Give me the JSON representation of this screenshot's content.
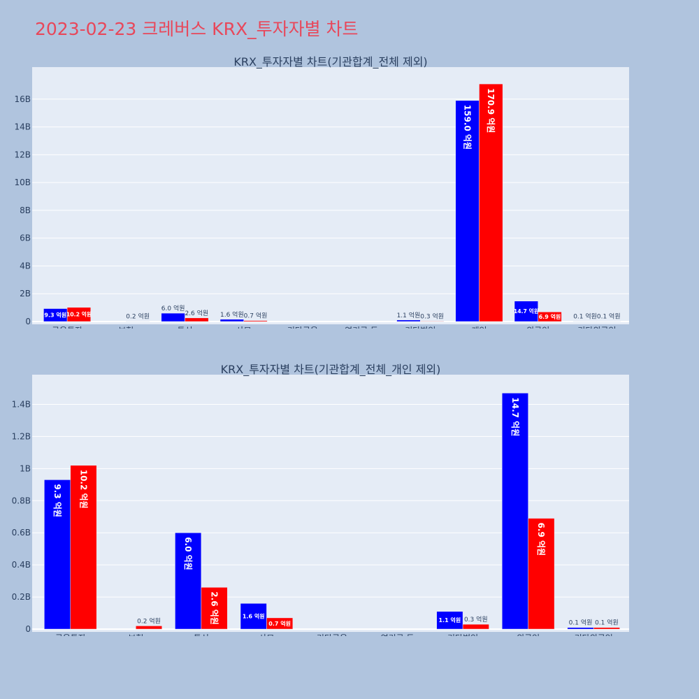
{
  "page": {
    "title": "2023-02-23 크레버스 KRX_투자자별 차트"
  },
  "colors": {
    "background": "#b0c4de",
    "plot_bg": "#e5ecf6",
    "grid": "#ffffff",
    "title": "#e8475a",
    "text": "#2a3f5f",
    "series_1": "#0000ff",
    "series_2": "#ff0000"
  },
  "chart_data": [
    {
      "type": "bar",
      "title": "KRX_투자자별 차트(기관합계_전체 제외)",
      "categories": [
        "금융투자",
        "보험",
        "투신",
        "사모",
        "기타금융",
        "연기금 등",
        "기타법인",
        "개인",
        "외국인",
        "기타외국인"
      ],
      "series": [
        {
          "color": "#0000ff",
          "values": [
            930000000,
            null,
            600000000,
            160000000,
            null,
            null,
            110000000,
            15900000000,
            1470000000,
            10000000
          ],
          "labels": [
            "9.3 억원",
            "",
            "6.0 억원",
            "1.6 억원",
            "",
            "",
            "1.1 억원",
            "159.0 억원",
            "14.7 억원",
            "0.1 억원"
          ]
        },
        {
          "color": "#ff0000",
          "values": [
            1020000000,
            20000000,
            260000000,
            70000000,
            null,
            null,
            30000000,
            17090000000,
            690000000,
            10000000
          ],
          "labels": [
            "10.2 억원",
            "0.2 억원",
            "2.6 억원",
            "0.7 억원",
            "",
            "",
            "0.3 억원",
            "170.9 억원",
            "6.9 억원",
            "0.1 억원"
          ]
        }
      ],
      "yticks": [
        0,
        2000000000,
        4000000000,
        6000000000,
        8000000000,
        10000000000,
        12000000000,
        14000000000,
        16000000000
      ],
      "ytick_labels": [
        "0",
        "2B",
        "4B",
        "6B",
        "8B",
        "10B",
        "12B",
        "14B",
        "16B"
      ],
      "ylim": [
        0,
        17900000000
      ],
      "grid": true
    },
    {
      "type": "bar",
      "title": "KRX_투자자별 차트(기관합계_전체_개인 제외)",
      "categories": [
        "금융투자",
        "보험",
        "투신",
        "사모",
        "기타금융",
        "연기금 등",
        "기타법인",
        "외국인",
        "기타외국인"
      ],
      "series": [
        {
          "color": "#0000ff",
          "values": [
            930000000,
            null,
            600000000,
            160000000,
            null,
            null,
            110000000,
            1470000000,
            10000000
          ],
          "labels": [
            "9.3 억원",
            "",
            "6.0 억원",
            "1.6 억원",
            "",
            "",
            "1.1 억원",
            "14.7 억원",
            "0.1 억원"
          ]
        },
        {
          "color": "#ff0000",
          "values": [
            1020000000,
            20000000,
            260000000,
            70000000,
            null,
            null,
            30000000,
            690000000,
            10000000
          ],
          "labels": [
            "10.2 억원",
            "0.2 억원",
            "2.6 억원",
            "0.7 억원",
            "",
            "",
            "0.3 억원",
            "6.9 억원",
            "0.1 억원"
          ]
        }
      ],
      "yticks": [
        0,
        200000000,
        400000000,
        600000000,
        800000000,
        1000000000,
        1200000000,
        1400000000
      ],
      "ytick_labels": [
        "0",
        "0.2B",
        "0.4B",
        "0.6B",
        "0.8B",
        "1B",
        "1.2B",
        "1.4B"
      ],
      "ylim": [
        0,
        1550000000
      ],
      "grid": true
    }
  ]
}
